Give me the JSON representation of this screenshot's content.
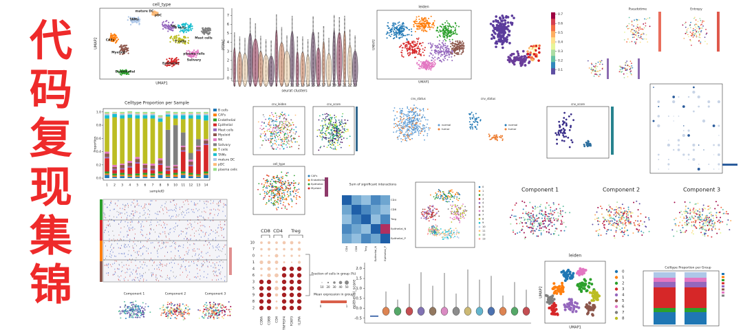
{
  "title": "代码复现集锦",
  "panels": {
    "celltype_umap": {
      "title": "cell_type",
      "xlabel": "UMAP1",
      "ylabel": "UMAP2",
      "labels": [
        "mature DC",
        "pDC",
        "TAMs",
        "NK",
        "B cells",
        "Mast cells",
        "T cells",
        "CAFs",
        "Myeloid",
        "plasma cells",
        "Salivary",
        "Epithelial",
        "Endothelial"
      ]
    },
    "violin": {
      "ylabel": "PTPRC",
      "xlabel": "seurat clusters",
      "categories": [
        "0",
        "1",
        "2",
        "3",
        "4",
        "5",
        "6",
        "7",
        "8",
        "9",
        "10",
        "11",
        "12",
        "13",
        "14",
        "15",
        "16",
        "17",
        "18",
        "19",
        "20",
        "21",
        "22",
        "23"
      ],
      "ylim": [
        -0.3,
        7.8
      ],
      "yticks": [
        0,
        1,
        2,
        3,
        4,
        5,
        6,
        7
      ]
    },
    "leiden_top": {
      "title": "leiden",
      "xlabel": "UMAP1",
      "ylabel": "UMAP2"
    },
    "score_umap": {
      "clim": [
        0.05,
        0.72
      ],
      "colorbar_ticks": [
        0.1,
        0.2,
        0.3,
        0.4,
        0.5,
        0.6,
        0.7
      ]
    },
    "pseudotime": {
      "titles": [
        "Pseudotime",
        "Entropy"
      ]
    },
    "proportion": {
      "title": "Celltype Proportion per Sample",
      "xlabel": "sampleID",
      "ylabel": "Proportion",
      "categories": [
        "1",
        "2",
        "3",
        "4",
        "5",
        "6",
        "7",
        "8",
        "9",
        "10",
        "11",
        "12",
        "13",
        "14"
      ],
      "ylim": [
        -0.03,
        1.05
      ],
      "yticks": [
        {
          "value": 0,
          "label": "0.0"
        },
        0.2,
        0.4,
        0.6,
        0.8,
        {
          "value": 1,
          "label": "1.0"
        }
      ],
      "series": [
        {
          "name": "B cells",
          "color": "#1f77b4",
          "values": [
            0.05,
            0.02,
            0.03,
            0.02,
            0.02,
            0.02,
            0.02,
            0.05,
            0.02,
            0.02,
            0.05,
            0.03,
            0.02,
            0.05
          ]
        },
        {
          "name": "CAFs",
          "color": "#ff7f0e",
          "values": [
            0.02,
            0.02,
            0.02,
            0.02,
            0.02,
            0.03,
            0.02,
            0.02,
            0.02,
            0.03,
            0.02,
            0.02,
            0.02,
            0.02
          ]
        },
        {
          "name": "Endothelial",
          "color": "#2ca02c",
          "values": [
            0.03,
            0.03,
            0.03,
            0.02,
            0.03,
            0.03,
            0.03,
            0.03,
            0.02,
            0.03,
            0.03,
            0.03,
            0.02,
            0.03
          ]
        },
        {
          "name": "Epithelial",
          "color": "#d62728",
          "values": [
            0.2,
            0.05,
            0.05,
            0.1,
            0.15,
            0.05,
            0.05,
            0.1,
            0.05,
            0.05,
            0.3,
            0.1,
            0.35,
            0.4
          ]
        },
        {
          "name": "Mast cells",
          "color": "#9467bd",
          "values": [
            0.02,
            0.02,
            0.02,
            0.02,
            0.02,
            0.02,
            0.02,
            0.02,
            0.02,
            0.02,
            0.02,
            0.02,
            0.02,
            0.02
          ]
        },
        {
          "name": "Myeloid",
          "color": "#8c564b",
          "values": [
            0.05,
            0.03,
            0.05,
            0.05,
            0.05,
            0.05,
            0.05,
            0.05,
            0.03,
            0.03,
            0.05,
            0.05,
            0.04,
            0.05
          ]
        },
        {
          "name": "NK",
          "color": "#e377c2",
          "values": [
            0.03,
            0.03,
            0.02,
            0.03,
            0.03,
            0.02,
            0.03,
            0.03,
            0.02,
            0.02,
            0.02,
            0.03,
            0.02,
            0.02
          ]
        },
        {
          "name": "Salivary",
          "color": "#7f7f7f",
          "values": [
            0,
            0,
            0,
            0,
            0,
            0,
            0,
            0,
            0.55,
            0.6,
            0.2,
            0.1,
            0.1,
            0
          ]
        },
        {
          "name": "T cells",
          "color": "#bcbd22",
          "values": [
            0.5,
            0.72,
            0.68,
            0.65,
            0.58,
            0.68,
            0.68,
            0.55,
            0.2,
            0.1,
            0.2,
            0.52,
            0.3,
            0.28
          ]
        },
        {
          "name": "TAMs",
          "color": "#17becf",
          "values": [
            0.05,
            0.05,
            0.05,
            0.05,
            0.05,
            0.05,
            0.05,
            0.05,
            0.03,
            0.05,
            0.06,
            0.05,
            0.06,
            0.08
          ]
        },
        {
          "name": "mature DC",
          "color": "#aec7e8",
          "values": [
            0.02,
            0.01,
            0.02,
            0.02,
            0.02,
            0.02,
            0.02,
            0.02,
            0.02,
            0.02,
            0.02,
            0.02,
            0.02,
            0.02
          ]
        },
        {
          "name": "pDC",
          "color": "#ffbb78",
          "values": [
            0.01,
            0.01,
            0.01,
            0.01,
            0.01,
            0.01,
            0.01,
            0.01,
            0.01,
            0.01,
            0.01,
            0.01,
            0.01,
            0.01
          ]
        },
        {
          "name": "plasma cells",
          "color": "#98df8a",
          "values": [
            0.02,
            0.01,
            0.02,
            0.02,
            0.02,
            0.02,
            0.02,
            0.02,
            0.02,
            0.02,
            0.02,
            0.02,
            0.02,
            0.02
          ]
        }
      ]
    },
    "components_small": {
      "titles": [
        "Component 1",
        "Component 2",
        "Component 3"
      ]
    },
    "cnv_trio": {
      "titles": [
        "cnv_leiden",
        "cnv_score",
        "cell_type"
      ],
      "legend": [
        "CAFs",
        "Endothelial",
        "Epithelial",
        "Myeloid"
      ]
    },
    "cnv_status": {
      "titles": [
        "cnv_status",
        "cnv_status",
        "cnv_score"
      ],
      "legend": [
        "normal",
        "tumor"
      ]
    },
    "interactions": {
      "title": "Sum of significant interactions",
      "labels": [
        "CD4",
        "CD8",
        "Treg",
        "Epithelial_N",
        "Epithelial_P"
      ]
    },
    "umap_clusters": {
      "legend": [
        "0",
        "1",
        "2",
        "3",
        "4",
        "5",
        "6",
        "7",
        "8",
        "9",
        "10",
        "11",
        "12",
        "13"
      ]
    },
    "components_big": {
      "titles": [
        "Component 1",
        "Component 2",
        "Component 3"
      ]
    },
    "dotplot": {
      "groups": [
        "CD8",
        "CD4",
        "Treg"
      ],
      "genes": [
        "CD8A",
        "CD8B",
        "CD4",
        "TNFRSF4",
        "FOXP3",
        "IL2RA"
      ],
      "rows": [
        "10",
        "7",
        "0",
        "1",
        "4",
        "6",
        "3",
        "5",
        "9",
        "8",
        "2"
      ],
      "size_title": "Fraction of cells in group (%)",
      "size_ticks": [
        10,
        20,
        30,
        40,
        50
      ],
      "color_title": "Mean expression in group",
      "color_ticks": [
        0,
        1
      ]
    },
    "epithelial_violin": {
      "ylabel": "epithelial_score",
      "ylim": [
        -0.75,
        2.3
      ],
      "yticks": [
        -0.5,
        {
          "value": 0,
          "label": "0.0"
        },
        0.5,
        {
          "value": 1,
          "label": "1.0"
        },
        1.5,
        {
          "value": 2,
          "label": "2.0"
        }
      ]
    },
    "leiden_bottom": {
      "title": "leiden",
      "xlabel": "UMAP1",
      "ylabel": "UMAP2",
      "legend": [
        "0",
        "1",
        "2",
        "3",
        "4",
        "5",
        "6",
        "7",
        "8"
      ]
    },
    "group_prop": {
      "title": "Celltype Proportion per Group"
    }
  }
}
